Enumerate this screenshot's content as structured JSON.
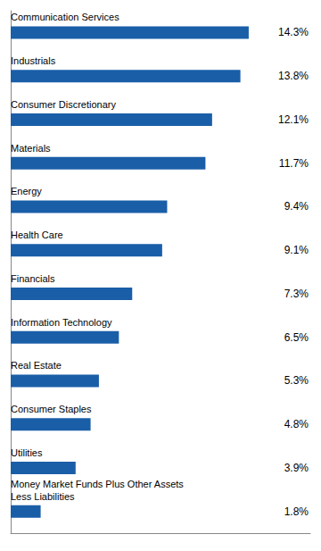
{
  "chart_data": {
    "type": "bar",
    "orientation": "horizontal",
    "categories": [
      "Money Market Funds Plus Other Assets\nLess Liabilities",
      "Utilities",
      "Consumer Staples",
      "Real Estate",
      "Information Technology",
      "Financials",
      "Health Care",
      "Energy",
      "Materials",
      "Consumer Discretionary",
      "Industrials",
      "Communication Services"
    ],
    "values": [
      1.8,
      3.9,
      4.8,
      5.3,
      6.5,
      7.3,
      9.1,
      9.4,
      11.7,
      12.1,
      13.8,
      14.3
    ],
    "value_labels": [
      "1.8%",
      "3.9%",
      "4.8%",
      "5.3%",
      "6.5%",
      "7.3%",
      "9.1%",
      "9.4%",
      "11.7%",
      "12.1%",
      "13.8%",
      "14.3%"
    ],
    "color": "#1a5ea8",
    "xlim": [
      0,
      18
    ],
    "data_labels": true,
    "tick_labels": false,
    "grid": false
  }
}
